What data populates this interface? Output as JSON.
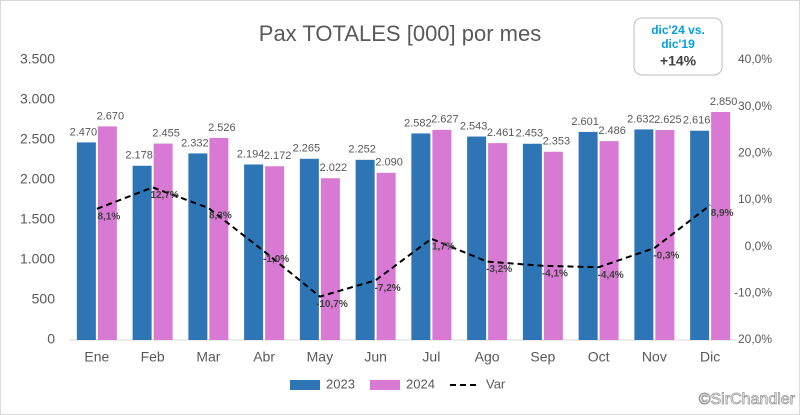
{
  "chart_data": {
    "type": "bar",
    "title": "Pax TOTALES [000] por mes",
    "categories": [
      "Ene",
      "Feb",
      "Mar",
      "Abr",
      "May",
      "Jun",
      "Jul",
      "Ago",
      "Sep",
      "Oct",
      "Nov",
      "Dic"
    ],
    "series": [
      {
        "name": "2023",
        "color": "#2e75b6",
        "values": [
          2470,
          2178,
          2332,
          2194,
          2265,
          2252,
          2582,
          2543,
          2453,
          2601,
          2632,
          2616
        ],
        "value_labels": [
          "2.470",
          "2.178",
          "2.332",
          "2.194",
          "2.265",
          "2.252",
          "2.582",
          "2.543",
          "2.453",
          "2.601",
          "2.632",
          "2.616"
        ]
      },
      {
        "name": "2024",
        "color": "#d87ad3",
        "values": [
          2670,
          2455,
          2526,
          2172,
          2022,
          2090,
          2627,
          2461,
          2353,
          2486,
          2625,
          2850
        ],
        "value_labels": [
          "2.670",
          "2.455",
          "2.526",
          "2.172",
          "2.022",
          "2.090",
          "2.627",
          "2.461",
          "2.353",
          "2.486",
          "2.625",
          "2.850"
        ]
      },
      {
        "name": "Var",
        "color": "#000000",
        "type": "line",
        "axis": "y2",
        "dashed": true,
        "values": [
          8.1,
          12.7,
          8.3,
          -1.0,
          -10.7,
          -7.2,
          1.7,
          -3.2,
          -4.1,
          -4.4,
          -0.3,
          8.9
        ],
        "value_labels": [
          "8,1%",
          "12,7%",
          "8,3%",
          "-1,0%",
          "-10,7%",
          "-7,2%",
          "1,7%",
          "-3,2%",
          "-4,1%",
          "-4,4%",
          "-0,3%",
          "8,9%"
        ]
      }
    ],
    "ylim": [
      0,
      3500
    ],
    "yticks": [
      0,
      500,
      {
        "value": 1000,
        "label": "1.000"
      },
      {
        "value": 1500,
        "label": "1.500"
      },
      {
        "value": 2000,
        "label": "2.000"
      },
      {
        "value": 2500,
        "label": "2.500"
      },
      {
        "value": 3000,
        "label": "3.000"
      },
      {
        "value": 3500,
        "label": "3.500"
      }
    ],
    "y2lim": [
      -20,
      40
    ],
    "y2ticks": [
      {
        "value": -20,
        "label": "-20,0%"
      },
      {
        "value": -10,
        "label": "-10,0%"
      },
      {
        "value": 0,
        "label": "0,0%"
      },
      {
        "value": 10,
        "label": "10,0%"
      },
      {
        "value": 20,
        "label": "20,0%"
      },
      {
        "value": 30,
        "label": "30,0%"
      },
      {
        "value": 40,
        "label": "40,0%"
      }
    ],
    "grid": false,
    "legend": "bottom",
    "annotation": {
      "lines": [
        "dic'24 vs.",
        "dic'19"
      ],
      "value": "+14%"
    },
    "watermark": "©SirChandler"
  }
}
